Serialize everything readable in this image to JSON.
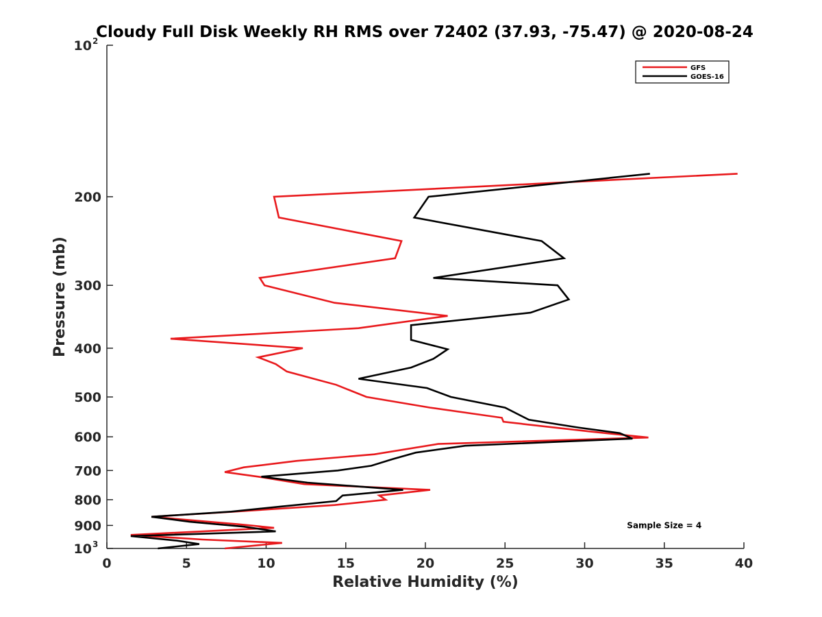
{
  "chart_data": {
    "type": "line",
    "title": "Cloudy Full Disk Weekly RH RMS over 72402 (37.93, -75.47) @ 2020-08-24",
    "xlabel": "Relative Humidity (%)",
    "ylabel": "Pressure (mb)",
    "xlim": [
      0,
      40
    ],
    "ylim": [
      100,
      1000
    ],
    "yscale": "log",
    "y_reversed": true,
    "grid": false,
    "legend_position": "top-right",
    "x_ticks": [
      "0",
      "5",
      "10",
      "15",
      "20",
      "25",
      "30",
      "35",
      "40"
    ],
    "y_ticks": [
      {
        "value": 100,
        "label": "10",
        "exponent": "2"
      },
      {
        "value": 200,
        "label": "200",
        "exponent": ""
      },
      {
        "value": 300,
        "label": "300",
        "exponent": ""
      },
      {
        "value": 400,
        "label": "400",
        "exponent": ""
      },
      {
        "value": 500,
        "label": "500",
        "exponent": ""
      },
      {
        "value": 600,
        "label": "600",
        "exponent": ""
      },
      {
        "value": 700,
        "label": "700",
        "exponent": ""
      },
      {
        "value": 800,
        "label": "800",
        "exponent": ""
      },
      {
        "value": 900,
        "label": "900",
        "exponent": ""
      },
      {
        "value": 1000,
        "label": "10",
        "exponent": "3"
      }
    ],
    "series": [
      {
        "name": "GFS",
        "color": "#e8191c",
        "points": [
          [
            39.6,
            180
          ],
          [
            10.5,
            200
          ],
          [
            10.8,
            220
          ],
          [
            18.5,
            245
          ],
          [
            18.1,
            265
          ],
          [
            9.6,
            290
          ],
          [
            9.9,
            300
          ],
          [
            14.3,
            325
          ],
          [
            21.4,
            345
          ],
          [
            15.8,
            365
          ],
          [
            4.0,
            383
          ],
          [
            12.3,
            400
          ],
          [
            9.5,
            417
          ],
          [
            10.6,
            430
          ],
          [
            11.3,
            445
          ],
          [
            14.4,
            473
          ],
          [
            16.3,
            500
          ],
          [
            20.3,
            525
          ],
          [
            24.8,
            550
          ],
          [
            24.9,
            560
          ],
          [
            30.2,
            585
          ],
          [
            34.0,
            602
          ],
          [
            20.8,
            620
          ],
          [
            16.8,
            650
          ],
          [
            11.9,
            670
          ],
          [
            8.6,
            690
          ],
          [
            7.4,
            705
          ],
          [
            9.5,
            720
          ],
          [
            12.4,
            745
          ],
          [
            20.3,
            765
          ],
          [
            17.1,
            785
          ],
          [
            17.5,
            800
          ],
          [
            14.3,
            820
          ],
          [
            8.0,
            845
          ],
          [
            2.8,
            865
          ],
          [
            8.2,
            895
          ],
          [
            10.5,
            910
          ],
          [
            1.5,
            940
          ],
          [
            6.0,
            960
          ],
          [
            11.0,
            975
          ],
          [
            7.4,
            1000
          ]
        ]
      },
      {
        "name": "GOES-16",
        "color": "#000000",
        "points": [
          [
            34.1,
            180
          ],
          [
            20.2,
            200
          ],
          [
            19.3,
            220
          ],
          [
            27.3,
            245
          ],
          [
            28.7,
            265
          ],
          [
            20.5,
            290
          ],
          [
            28.3,
            300
          ],
          [
            29.0,
            320
          ],
          [
            26.6,
            340
          ],
          [
            19.1,
            360
          ],
          [
            19.1,
            385
          ],
          [
            21.4,
            402
          ],
          [
            20.5,
            420
          ],
          [
            19.1,
            437
          ],
          [
            15.8,
            460
          ],
          [
            20.1,
            480
          ],
          [
            21.6,
            500
          ],
          [
            25.0,
            525
          ],
          [
            26.5,
            555
          ],
          [
            29.6,
            575
          ],
          [
            32.2,
            590
          ],
          [
            33.0,
            605
          ],
          [
            22.5,
            625
          ],
          [
            19.4,
            645
          ],
          [
            17.9,
            665
          ],
          [
            16.6,
            685
          ],
          [
            14.5,
            700
          ],
          [
            9.7,
            720
          ],
          [
            12.6,
            740
          ],
          [
            18.6,
            765
          ],
          [
            14.8,
            785
          ],
          [
            14.4,
            805
          ],
          [
            11.0,
            825
          ],
          [
            7.8,
            845
          ],
          [
            2.8,
            865
          ],
          [
            5.2,
            885
          ],
          [
            8.6,
            905
          ],
          [
            10.6,
            925
          ],
          [
            1.5,
            945
          ],
          [
            4.4,
            965
          ],
          [
            5.8,
            980
          ],
          [
            3.2,
            1000
          ]
        ]
      }
    ],
    "annotations": [
      {
        "text": "Sample Size = 4",
        "x": 35.0,
        "y": 920
      }
    ]
  }
}
